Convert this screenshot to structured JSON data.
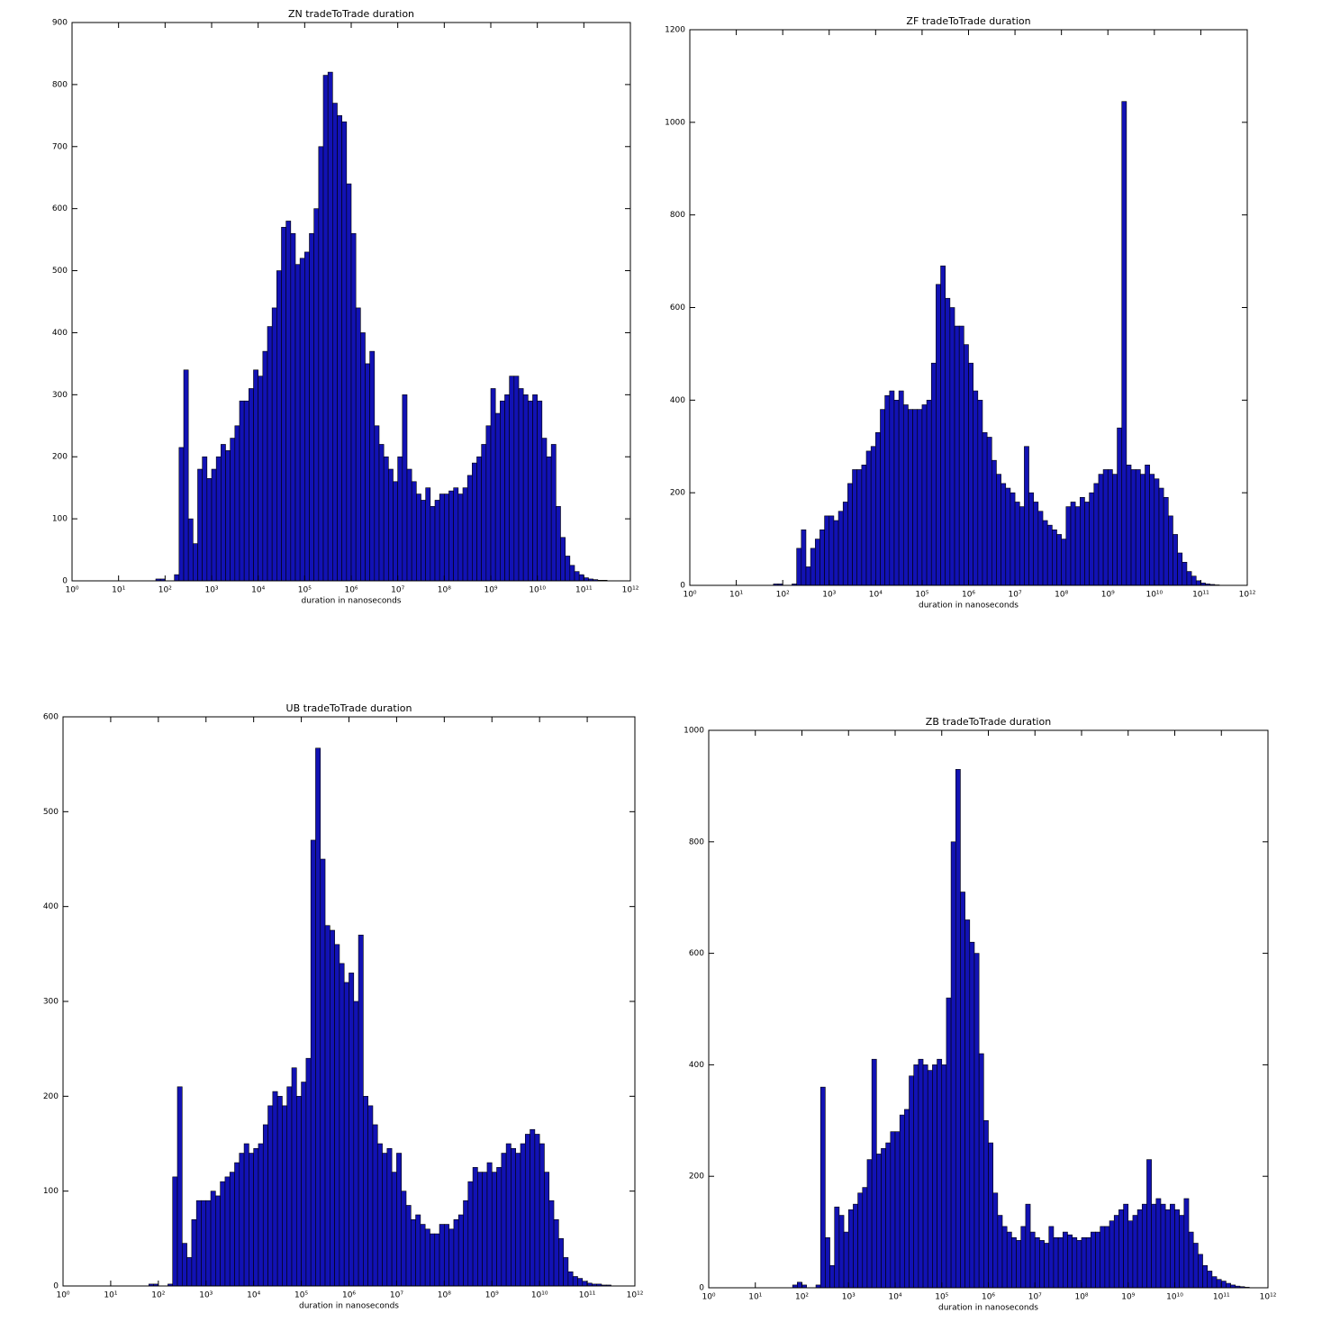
{
  "chart_data": [
    {
      "type": "histogram",
      "title": "ZN tradeToTrade duration",
      "xlabel": "duration in nanoseconds",
      "xscale": "log",
      "color": "#1212b4",
      "bins": [
        63.1,
        79.43,
        100.0,
        125.9,
        158.5,
        199.5,
        251.2,
        316.2,
        398.1,
        501.2,
        631.0,
        794.3,
        1000.0,
        1259.0,
        1585.0,
        1995.0,
        2512.0,
        3162.0,
        3981.0,
        5012.0,
        6310.0,
        7943.0,
        10000.0,
        12590.0,
        15850.0,
        19950.0,
        25120.0,
        31620.0,
        39810.0,
        50120.0,
        63100.0,
        79430.0,
        100000.0,
        125900.0,
        158500.0,
        199500.0,
        251200.0,
        316200.0,
        398100.0,
        501200.0,
        631000.0,
        794300.0,
        1000000.0,
        1259000.0,
        1585000.0,
        1995000.0,
        2512000.0,
        3162000.0,
        3981000.0,
        5012000.0,
        6310000.0,
        7943000.0,
        10000000.0,
        12590000.0,
        15850000.0,
        19950000.0,
        25120000.0,
        31620000.0,
        39810000.0,
        50120000.0,
        63100000.0,
        79430000.0,
        100000000.0,
        125900000.0,
        158500000.0,
        199500000.0,
        251200000.0,
        316200000.0,
        398100000.0,
        501200000.0,
        631000000.0,
        794300000.0,
        1000000000.0,
        1259000000.0,
        1585000000.0,
        1995000000.0,
        2512000000.0,
        3162000000.0,
        3981000000.0,
        5012000000.0,
        6310000000.0,
        7943000000.0,
        10000000000.0,
        12590000000.0,
        15850000000.0,
        19950000000.0,
        25120000000.0,
        31620000000.0,
        39810000000.0,
        50120000000.0,
        63100000000.0,
        79430000000.0,
        100000000000.0,
        125900000000.0,
        158500000000.0,
        199500000000.0,
        251200000000.0,
        316200000000.0,
        398100000000.0,
        501200000000.0,
        631000000000.0
      ],
      "values": [
        3,
        3,
        0,
        0,
        10,
        215,
        340,
        100,
        60,
        180,
        200,
        165,
        180,
        200,
        220,
        210,
        230,
        250,
        290,
        290,
        310,
        340,
        330,
        370,
        410,
        440,
        500,
        570,
        580,
        560,
        510,
        520,
        530,
        560,
        600,
        700,
        815,
        820,
        770,
        750,
        740,
        640,
        560,
        440,
        400,
        350,
        370,
        250,
        220,
        200,
        180,
        160,
        200,
        300,
        180,
        160,
        140,
        130,
        150,
        120,
        130,
        140,
        140,
        145,
        150,
        140,
        150,
        170,
        190,
        200,
        220,
        250,
        310,
        270,
        290,
        300,
        330,
        330,
        310,
        300,
        290,
        300,
        290,
        230,
        200,
        220,
        120,
        70,
        40,
        25,
        15,
        10,
        5,
        3,
        2,
        1,
        1,
        0,
        0,
        0
      ],
      "xlim": [
        1,
        1000000000000.0
      ],
      "xticks": [
        {
          "value": 1,
          "label": "10⁰"
        },
        {
          "value": 10.0,
          "label": "10¹"
        },
        {
          "value": 100.0,
          "label": "10²"
        },
        {
          "value": 1000.0,
          "label": "10³"
        },
        {
          "value": 10000.0,
          "label": "10⁴"
        },
        {
          "value": 100000.0,
          "label": "10⁵"
        },
        {
          "value": 1000000.0,
          "label": "10⁶"
        },
        {
          "value": 10000000.0,
          "label": "10⁷"
        },
        {
          "value": 100000000.0,
          "label": "10⁸"
        },
        {
          "value": 1000000000.0,
          "label": "10⁹"
        },
        {
          "value": 10000000000.0,
          "label": "10¹⁰"
        },
        {
          "value": 100000000000.0,
          "label": "10¹¹"
        },
        {
          "value": 1000000000000.0,
          "label": "10¹²"
        }
      ],
      "ylim": [
        0,
        900
      ],
      "yticks": [
        0,
        100,
        200,
        300,
        400,
        500,
        600,
        700,
        800,
        900
      ]
    },
    {
      "type": "histogram",
      "title": "ZF tradeToTrade duration",
      "xlabel": "duration in nanoseconds",
      "xscale": "log",
      "color": "#1212b4",
      "bins": [
        63.1,
        79.43,
        100.0,
        125.9,
        158.5,
        199.5,
        251.2,
        316.2,
        398.1,
        501.2,
        631.0,
        794.3,
        1000.0,
        1259.0,
        1585.0,
        1995.0,
        2512.0,
        3162.0,
        3981.0,
        5012.0,
        6310.0,
        7943.0,
        10000.0,
        12590.0,
        15850.0,
        19950.0,
        25120.0,
        31620.0,
        39810.0,
        50120.0,
        63100.0,
        79430.0,
        100000.0,
        125900.0,
        158500.0,
        199500.0,
        251200.0,
        316200.0,
        398100.0,
        501200.0,
        631000.0,
        794300.0,
        1000000.0,
        1259000.0,
        1585000.0,
        1995000.0,
        2512000.0,
        3162000.0,
        3981000.0,
        5012000.0,
        6310000.0,
        7943000.0,
        10000000.0,
        12590000.0,
        15850000.0,
        19950000.0,
        25120000.0,
        31620000.0,
        39810000.0,
        50120000.0,
        63100000.0,
        79430000.0,
        100000000.0,
        125900000.0,
        158500000.0,
        199500000.0,
        251200000.0,
        316200000.0,
        398100000.0,
        501200000.0,
        631000000.0,
        794300000.0,
        1000000000.0,
        1259000000.0,
        1585000000.0,
        1995000000.0,
        2512000000.0,
        3162000000.0,
        3981000000.0,
        5012000000.0,
        6310000000.0,
        7943000000.0,
        10000000000.0,
        12590000000.0,
        15850000000.0,
        19950000000.0,
        25120000000.0,
        31620000000.0,
        39810000000.0,
        50120000000.0,
        63100000000.0,
        79430000000.0,
        100000000000.0,
        125900000000.0,
        158500000000.0,
        199500000000.0,
        251200000000.0,
        316200000000.0,
        398100000000.0,
        501200000000.0,
        631000000000.0
      ],
      "values": [
        3,
        3,
        0,
        0,
        3,
        80,
        120,
        40,
        80,
        100,
        120,
        150,
        150,
        140,
        160,
        180,
        220,
        250,
        250,
        260,
        290,
        300,
        330,
        380,
        410,
        420,
        400,
        420,
        390,
        380,
        380,
        380,
        390,
        400,
        480,
        650,
        690,
        620,
        600,
        560,
        560,
        520,
        480,
        420,
        400,
        330,
        320,
        270,
        240,
        220,
        210,
        200,
        180,
        170,
        300,
        200,
        180,
        160,
        140,
        130,
        120,
        110,
        100,
        170,
        180,
        170,
        190,
        180,
        200,
        220,
        240,
        250,
        250,
        240,
        340,
        1045,
        260,
        250,
        250,
        240,
        260,
        240,
        230,
        210,
        190,
        150,
        110,
        70,
        50,
        30,
        20,
        10,
        5,
        3,
        2,
        1,
        0,
        0,
        0,
        0
      ],
      "xlim": [
        1,
        1000000000000.0
      ],
      "xticks": [
        {
          "value": 1,
          "label": "10⁰"
        },
        {
          "value": 10.0,
          "label": "10¹"
        },
        {
          "value": 100.0,
          "label": "10²"
        },
        {
          "value": 1000.0,
          "label": "10³"
        },
        {
          "value": 10000.0,
          "label": "10⁴"
        },
        {
          "value": 100000.0,
          "label": "10⁵"
        },
        {
          "value": 1000000.0,
          "label": "10⁶"
        },
        {
          "value": 10000000.0,
          "label": "10⁷"
        },
        {
          "value": 100000000.0,
          "label": "10⁸"
        },
        {
          "value": 1000000000.0,
          "label": "10⁹"
        },
        {
          "value": 10000000000.0,
          "label": "10¹⁰"
        },
        {
          "value": 100000000000.0,
          "label": "10¹¹"
        },
        {
          "value": 1000000000000.0,
          "label": "10¹²"
        }
      ],
      "ylim": [
        0,
        1200
      ],
      "yticks": [
        0,
        200,
        400,
        600,
        800,
        1000,
        1200
      ]
    },
    {
      "type": "histogram",
      "title": "UB tradeToTrade duration",
      "xlabel": "duration in nanoseconds",
      "xscale": "log",
      "color": "#1212b4",
      "bins": [
        63.1,
        79.43,
        100.0,
        125.9,
        158.5,
        199.5,
        251.2,
        316.2,
        398.1,
        501.2,
        631.0,
        794.3,
        1000.0,
        1259.0,
        1585.0,
        1995.0,
        2512.0,
        3162.0,
        3981.0,
        5012.0,
        6310.0,
        7943.0,
        10000.0,
        12590.0,
        15850.0,
        19950.0,
        25120.0,
        31620.0,
        39810.0,
        50120.0,
        63100.0,
        79430.0,
        100000.0,
        125900.0,
        158500.0,
        199500.0,
        251200.0,
        316200.0,
        398100.0,
        501200.0,
        631000.0,
        794300.0,
        1000000.0,
        1259000.0,
        1585000.0,
        1995000.0,
        2512000.0,
        3162000.0,
        3981000.0,
        5012000.0,
        6310000.0,
        7943000.0,
        10000000.0,
        12590000.0,
        15850000.0,
        19950000.0,
        25120000.0,
        31620000.0,
        39810000.0,
        50120000.0,
        63100000.0,
        79430000.0,
        100000000.0,
        125900000.0,
        158500000.0,
        199500000.0,
        251200000.0,
        316200000.0,
        398100000.0,
        501200000.0,
        631000000.0,
        794300000.0,
        1000000000.0,
        1259000000.0,
        1585000000.0,
        1995000000.0,
        2512000000.0,
        3162000000.0,
        3981000000.0,
        5012000000.0,
        6310000000.0,
        7943000000.0,
        10000000000.0,
        12590000000.0,
        15850000000.0,
        19950000000.0,
        25120000000.0,
        31620000000.0,
        39810000000.0,
        50120000000.0,
        63100000000.0,
        79430000000.0,
        100000000000.0,
        125900000000.0,
        158500000000.0,
        199500000000.0,
        251200000000.0,
        316200000000.0,
        398100000000.0,
        501200000000.0,
        631000000000.0
      ],
      "values": [
        2,
        2,
        0,
        0,
        2,
        115,
        210,
        45,
        30,
        70,
        90,
        90,
        90,
        100,
        95,
        110,
        115,
        120,
        130,
        140,
        150,
        140,
        145,
        150,
        170,
        190,
        205,
        200,
        190,
        210,
        230,
        200,
        215,
        240,
        470,
        567,
        450,
        380,
        375,
        360,
        340,
        320,
        330,
        300,
        370,
        200,
        190,
        170,
        150,
        140,
        145,
        120,
        140,
        100,
        85,
        70,
        75,
        65,
        60,
        55,
        55,
        65,
        65,
        60,
        70,
        75,
        90,
        110,
        125,
        120,
        120,
        130,
        120,
        125,
        140,
        150,
        145,
        140,
        150,
        160,
        165,
        160,
        150,
        120,
        90,
        70,
        50,
        30,
        15,
        10,
        8,
        5,
        3,
        2,
        2,
        1,
        1,
        0,
        0,
        0
      ],
      "xlim": [
        1,
        1000000000000.0
      ],
      "xticks": [
        {
          "value": 1,
          "label": "10⁰"
        },
        {
          "value": 10.0,
          "label": "10¹"
        },
        {
          "value": 100.0,
          "label": "10²"
        },
        {
          "value": 1000.0,
          "label": "10³"
        },
        {
          "value": 10000.0,
          "label": "10⁴"
        },
        {
          "value": 100000.0,
          "label": "10⁵"
        },
        {
          "value": 1000000.0,
          "label": "10⁶"
        },
        {
          "value": 10000000.0,
          "label": "10⁷"
        },
        {
          "value": 100000000.0,
          "label": "10⁸"
        },
        {
          "value": 1000000000.0,
          "label": "10⁹"
        },
        {
          "value": 10000000000.0,
          "label": "10¹⁰"
        },
        {
          "value": 100000000000.0,
          "label": "10¹¹"
        },
        {
          "value": 1000000000000.0,
          "label": "10¹²"
        }
      ],
      "ylim": [
        0,
        600
      ],
      "yticks": [
        0,
        100,
        200,
        300,
        400,
        500,
        600
      ]
    },
    {
      "type": "histogram",
      "title": "ZB tradeToTrade duration",
      "xlabel": "duration in nanoseconds",
      "xscale": "log",
      "color": "#1212b4",
      "bins": [
        63.1,
        79.43,
        100.0,
        125.9,
        158.5,
        199.5,
        251.2,
        316.2,
        398.1,
        501.2,
        631.0,
        794.3,
        1000.0,
        1259.0,
        1585.0,
        1995.0,
        2512.0,
        3162.0,
        3981.0,
        5012.0,
        6310.0,
        7943.0,
        10000.0,
        12590.0,
        15850.0,
        19950.0,
        25120.0,
        31620.0,
        39810.0,
        50120.0,
        63100.0,
        79430.0,
        100000.0,
        125900.0,
        158500.0,
        199500.0,
        251200.0,
        316200.0,
        398100.0,
        501200.0,
        631000.0,
        794300.0,
        1000000.0,
        1259000.0,
        1585000.0,
        1995000.0,
        2512000.0,
        3162000.0,
        3981000.0,
        5012000.0,
        6310000.0,
        7943000.0,
        10000000.0,
        12590000.0,
        15850000.0,
        19950000.0,
        25120000.0,
        31620000.0,
        39810000.0,
        50120000.0,
        63100000.0,
        79430000.0,
        100000000.0,
        125900000.0,
        158500000.0,
        199500000.0,
        251200000.0,
        316200000.0,
        398100000.0,
        501200000.0,
        631000000.0,
        794300000.0,
        1000000000.0,
        1259000000.0,
        1585000000.0,
        1995000000.0,
        2512000000.0,
        3162000000.0,
        3981000000.0,
        5012000000.0,
        6310000000.0,
        7943000000.0,
        10000000000.0,
        12590000000.0,
        15850000000.0,
        19950000000.0,
        25120000000.0,
        31620000000.0,
        39810000000.0,
        50120000000.0,
        63100000000.0,
        79430000000.0,
        100000000000.0,
        125900000000.0,
        158500000000.0,
        199500000000.0,
        251200000000.0,
        316200000000.0,
        398100000000.0,
        501200000000.0,
        631000000000.0
      ],
      "values": [
        5,
        10,
        5,
        0,
        0,
        5,
        360,
        90,
        40,
        145,
        130,
        100,
        140,
        150,
        170,
        180,
        230,
        410,
        240,
        250,
        260,
        280,
        280,
        310,
        320,
        380,
        400,
        410,
        400,
        390,
        400,
        410,
        400,
        520,
        800,
        930,
        710,
        660,
        620,
        600,
        420,
        300,
        260,
        170,
        130,
        110,
        100,
        90,
        85,
        110,
        150,
        100,
        90,
        85,
        80,
        110,
        90,
        90,
        100,
        95,
        90,
        85,
        90,
        90,
        100,
        100,
        110,
        110,
        120,
        130,
        140,
        150,
        120,
        130,
        140,
        150,
        230,
        150,
        160,
        150,
        140,
        150,
        140,
        130,
        160,
        100,
        80,
        60,
        40,
        30,
        20,
        15,
        12,
        8,
        5,
        3,
        2,
        1,
        0,
        0
      ],
      "xlim": [
        1,
        1000000000000.0
      ],
      "xticks": [
        {
          "value": 1,
          "label": "10⁰"
        },
        {
          "value": 10.0,
          "label": "10¹"
        },
        {
          "value": 100.0,
          "label": "10²"
        },
        {
          "value": 1000.0,
          "label": "10³"
        },
        {
          "value": 10000.0,
          "label": "10⁴"
        },
        {
          "value": 100000.0,
          "label": "10⁵"
        },
        {
          "value": 1000000.0,
          "label": "10⁶"
        },
        {
          "value": 10000000.0,
          "label": "10⁷"
        },
        {
          "value": 100000000.0,
          "label": "10⁸"
        },
        {
          "value": 1000000000.0,
          "label": "10⁹"
        },
        {
          "value": 10000000000.0,
          "label": "10¹⁰"
        },
        {
          "value": 100000000000.0,
          "label": "10¹¹"
        },
        {
          "value": 1000000000000.0,
          "label": "10¹²"
        }
      ],
      "ylim": [
        0,
        1000
      ],
      "yticks": [
        0,
        200,
        400,
        600,
        800,
        1000
      ]
    }
  ]
}
